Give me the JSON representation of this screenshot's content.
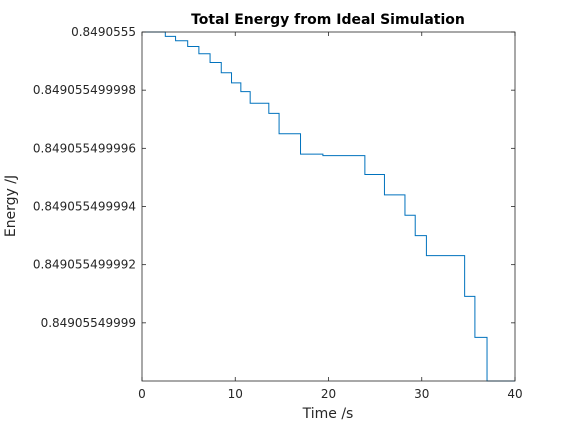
{
  "chart_data": {
    "type": "line",
    "title": "Total Energy from Ideal Simulation",
    "xlabel": "Time /s",
    "ylabel": "Energy /J",
    "xlim": [
      0,
      40
    ],
    "ylim": [
      0.849055499988,
      0.8490555
    ],
    "x_ticks": [
      0,
      10,
      20,
      30,
      40
    ],
    "x_tick_labels": [
      "0",
      "10",
      "20",
      "30",
      "40"
    ],
    "y_ticks": [
      0.84905549999,
      0.849055499992,
      0.849055499994,
      0.849055499996,
      0.849055499998,
      0.8490555
    ],
    "y_tick_labels": [
      "0.84905549999",
      "0.849055499992",
      "0.849055499994",
      "0.849055499996",
      "0.849055499998",
      "0.8490555"
    ],
    "grid": false,
    "series_color": "#0072BD",
    "series": [
      {
        "x": [
          0,
          2.5,
          2.5,
          3.6,
          3.6,
          4.9,
          4.9,
          6.1,
          6.1,
          7.3,
          7.3,
          8.5,
          8.5,
          9.6,
          9.6,
          10.6,
          10.6,
          11.6,
          11.6,
          13.6,
          13.6,
          14.7,
          14.7,
          17.0,
          17.0,
          19.4,
          19.4,
          23.9,
          23.9,
          26.0,
          26.0,
          28.2,
          28.2,
          29.3,
          29.3,
          30.5,
          30.5,
          34.6,
          34.6,
          35.7,
          35.7,
          37.0,
          37.0,
          40.0
        ],
        "y": [
          0.8490555,
          0.8490555,
          0.84905549999985,
          0.84905549999985,
          0.8490554999997,
          0.8490554999997,
          0.8490554999995,
          0.8490554999995,
          0.84905549999925,
          0.84905549999925,
          0.84905549999895,
          0.84905549999895,
          0.8490554999986,
          0.8490554999986,
          0.84905549999825,
          0.84905549999825,
          0.84905549999795,
          0.84905549999795,
          0.84905549999755,
          0.84905549999755,
          0.8490554999972,
          0.8490554999972,
          0.8490554999965,
          0.8490554999965,
          0.8490554999958,
          0.8490554999958,
          0.84905549999575,
          0.84905549999575,
          0.8490554999951,
          0.8490554999951,
          0.8490554999944,
          0.8490554999944,
          0.8490554999937,
          0.8490554999937,
          0.849055499993,
          0.849055499993,
          0.84905549999231,
          0.84905549999231,
          0.84905549999091,
          0.84905549999091,
          0.8490554999895,
          0.8490554999895,
          0.849055499988,
          0.849055499988
        ]
      }
    ]
  }
}
